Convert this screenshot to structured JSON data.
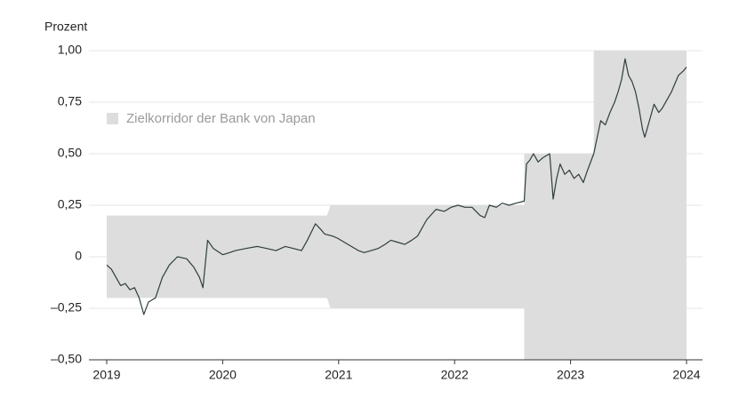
{
  "chart_data": {
    "type": "line",
    "y_label": "Prozent",
    "x": [
      2019.0,
      2019.04,
      2019.08,
      2019.12,
      2019.16,
      2019.2,
      2019.24,
      2019.28,
      2019.32,
      2019.36,
      2019.42,
      2019.48,
      2019.54,
      2019.61,
      2019.69,
      2019.75,
      2019.8,
      2019.83,
      2019.87,
      2019.92,
      2020.0,
      2020.06,
      2020.11,
      2020.2,
      2020.3,
      2020.38,
      2020.46,
      2020.54,
      2020.61,
      2020.68,
      2020.73,
      2020.8,
      2020.85,
      2020.88,
      2020.95,
      2020.99,
      2021.05,
      2021.11,
      2021.17,
      2021.22,
      2021.28,
      2021.34,
      2021.4,
      2021.45,
      2021.51,
      2021.57,
      2021.63,
      2021.68,
      2021.76,
      2021.84,
      2021.91,
      2021.97,
      2022.03,
      2022.09,
      2022.15,
      2022.22,
      2022.26,
      2022.3,
      2022.36,
      2022.41,
      2022.47,
      2022.53,
      2022.6,
      2022.62,
      2022.65,
      2022.68,
      2022.72,
      2022.76,
      2022.82,
      2022.85,
      2022.88,
      2022.91,
      2022.95,
      2022.99,
      2023.03,
      2023.07,
      2023.11,
      2023.14,
      2023.2,
      2023.26,
      2023.3,
      2023.34,
      2023.38,
      2023.41,
      2023.44,
      2023.47,
      2023.5,
      2023.53,
      2023.56,
      2023.59,
      2023.62,
      2023.64,
      2023.68,
      2023.72,
      2023.76,
      2023.79,
      2023.83,
      2023.87,
      2023.9,
      2023.93,
      2023.97,
      2024.0
    ],
    "values": [
      -0.04,
      -0.06,
      -0.1,
      -0.14,
      -0.13,
      -0.16,
      -0.15,
      -0.2,
      -0.28,
      -0.22,
      -0.2,
      -0.1,
      -0.04,
      0.0,
      -0.01,
      -0.05,
      -0.1,
      -0.15,
      0.08,
      0.04,
      0.01,
      0.02,
      0.03,
      0.04,
      0.05,
      0.04,
      0.03,
      0.05,
      0.04,
      0.03,
      0.08,
      0.16,
      0.13,
      0.11,
      0.1,
      0.09,
      0.07,
      0.05,
      0.03,
      0.02,
      0.03,
      0.04,
      0.06,
      0.08,
      0.07,
      0.06,
      0.08,
      0.1,
      0.18,
      0.23,
      0.22,
      0.24,
      0.25,
      0.24,
      0.24,
      0.2,
      0.19,
      0.25,
      0.24,
      0.26,
      0.25,
      0.26,
      0.27,
      0.45,
      0.47,
      0.5,
      0.46,
      0.48,
      0.5,
      0.28,
      0.38,
      0.45,
      0.4,
      0.42,
      0.38,
      0.4,
      0.36,
      0.41,
      0.5,
      0.66,
      0.64,
      0.7,
      0.75,
      0.8,
      0.86,
      0.96,
      0.88,
      0.85,
      0.8,
      0.72,
      0.62,
      0.58,
      0.66,
      0.74,
      0.7,
      0.72,
      0.76,
      0.8,
      0.84,
      0.88,
      0.9,
      0.92
    ],
    "color": "#2f3d3f",
    "band": {
      "name": "Zielkorridor der Bank von Japan",
      "color": "#dcdddc",
      "x": [
        2019.0,
        2020.9,
        2020.93,
        2022.6,
        2022.6,
        2023.2,
        2023.2,
        2024.0
      ],
      "upper": [
        0.2,
        0.2,
        0.25,
        0.25,
        0.5,
        0.5,
        1.0,
        1.0
      ],
      "lower": [
        -0.2,
        -0.2,
        -0.25,
        -0.25,
        -0.5,
        -0.5,
        -0.5,
        -0.5
      ]
    },
    "legend": "upper left",
    "xlim": [
      2019,
      2024
    ],
    "xticks": [
      2019,
      2020,
      2021,
      2022,
      2023,
      2024
    ],
    "ylim": [
      -0.5,
      1.0
    ],
    "yticks": [
      {
        "value": -0.5,
        "label": "–0,50"
      },
      {
        "value": -0.25,
        "label": "–0,25"
      },
      0,
      {
        "value": 0.25,
        "label": "0,25"
      },
      {
        "value": 0.5,
        "label": "0,50"
      },
      {
        "value": 0.75,
        "label": "0,75"
      },
      {
        "value": 1.0,
        "label": "1,00"
      }
    ],
    "grid": true
  }
}
